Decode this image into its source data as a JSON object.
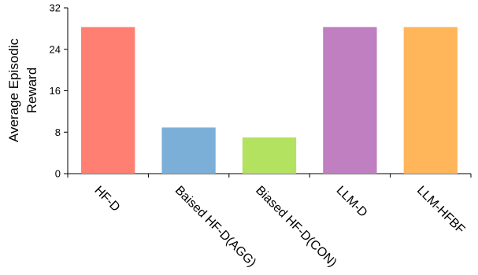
{
  "chart_data": {
    "type": "bar",
    "categories": [
      "HF-D",
      "Baised HF-D(AGG)",
      "Biased HF-D(CON)",
      "LLM-D",
      "LLM-HFBF"
    ],
    "values": [
      28.3,
      8.9,
      7.0,
      28.3,
      28.3
    ],
    "bar_colors": [
      "#ff7f72",
      "#7bafd8",
      "#b3e261",
      "#bf7fc1",
      "#ffb65a"
    ],
    "ylabel_lines": [
      "Average Episodic",
      "Reward"
    ],
    "xlabel": "",
    "ylim": [
      0,
      32
    ],
    "yticks": [
      0,
      8,
      16,
      24,
      32
    ],
    "grid": false,
    "legend": "none"
  }
}
